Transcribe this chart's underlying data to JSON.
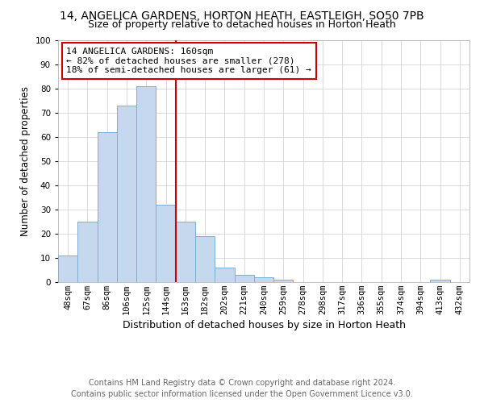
{
  "title": "14, ANGELICA GARDENS, HORTON HEATH, EASTLEIGH, SO50 7PB",
  "subtitle": "Size of property relative to detached houses in Horton Heath",
  "xlabel": "Distribution of detached houses by size in Horton Heath",
  "ylabel": "Number of detached properties",
  "footer1": "Contains HM Land Registry data © Crown copyright and database right 2024.",
  "footer2": "Contains public sector information licensed under the Open Government Licence v3.0.",
  "categories": [
    "48sqm",
    "67sqm",
    "86sqm",
    "106sqm",
    "125sqm",
    "144sqm",
    "163sqm",
    "182sqm",
    "202sqm",
    "221sqm",
    "240sqm",
    "259sqm",
    "278sqm",
    "298sqm",
    "317sqm",
    "336sqm",
    "355sqm",
    "374sqm",
    "394sqm",
    "413sqm",
    "432sqm"
  ],
  "values": [
    11,
    25,
    62,
    73,
    81,
    32,
    25,
    19,
    6,
    3,
    2,
    1,
    0,
    0,
    0,
    0,
    0,
    0,
    0,
    1,
    0
  ],
  "bar_color": "#c5d8ed",
  "bar_edge_color": "#7bafd4",
  "vline_x": 5.5,
  "vline_color": "#cc0000",
  "annotation_text": "14 ANGELICA GARDENS: 160sqm\n← 82% of detached houses are smaller (278)\n18% of semi-detached houses are larger (61) →",
  "annotation_box_color": "#ffffff",
  "annotation_box_edge_color": "#cc0000",
  "ylim": [
    0,
    100
  ],
  "yticks": [
    0,
    10,
    20,
    30,
    40,
    50,
    60,
    70,
    80,
    90,
    100
  ],
  "grid_color": "#cccccc",
  "bg_color": "#ffffff",
  "title_fontsize": 10,
  "subtitle_fontsize": 9,
  "xlabel_fontsize": 9,
  "ylabel_fontsize": 8.5,
  "tick_fontsize": 7.5,
  "annotation_fontsize": 8,
  "footer_fontsize": 7
}
